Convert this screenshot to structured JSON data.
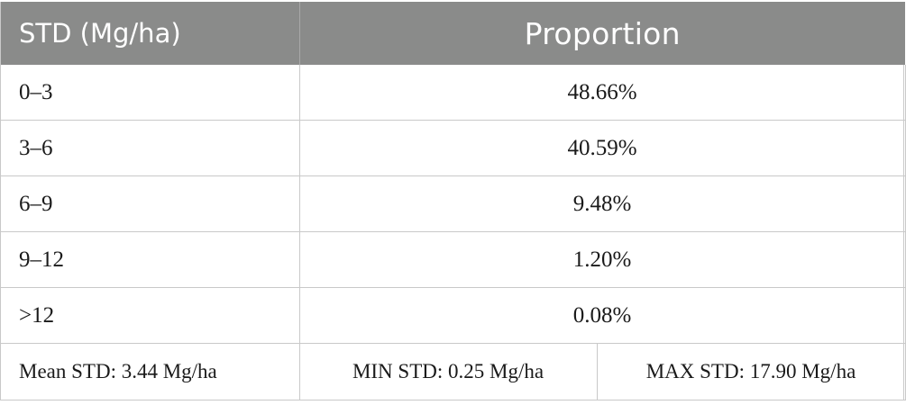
{
  "table": {
    "headers": [
      "STD (Mg/ha)",
      "Proportion"
    ],
    "rows": [
      {
        "range": "0–3",
        "proportion": "48.66%"
      },
      {
        "range": "3–6",
        "proportion": "40.59%"
      },
      {
        "range": "6–9",
        "proportion": "9.48%"
      },
      {
        "range": "9–12",
        "proportion": "1.20%"
      },
      {
        "range": ">12",
        "proportion": "0.08%"
      }
    ],
    "summary": {
      "mean": "Mean STD: 3.44 Mg/ha",
      "min": "MIN STD: 0.25 Mg/ha",
      "max": "MAX STD: 17.90 Mg/ha"
    }
  },
  "colors": {
    "header_bg": "#8a8b8a",
    "header_text": "#ffffff",
    "grid_line": "#c9c9c9",
    "body_text": "#1a1a1a"
  }
}
